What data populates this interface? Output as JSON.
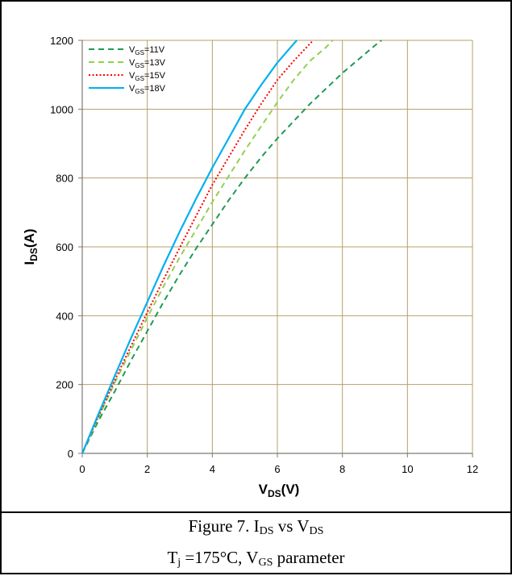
{
  "chart_data": {
    "type": "line",
    "xlabel_main": "V",
    "xlabel_sub": "DS",
    "xlabel_unit": "(V)",
    "ylabel_main": "I",
    "ylabel_sub": "DS",
    "ylabel_unit": "(A)",
    "xlim": [
      0,
      12
    ],
    "ylim": [
      0,
      1200
    ],
    "x_ticks": [
      0,
      2,
      4,
      6,
      8,
      10,
      12
    ],
    "y_ticks": [
      0,
      200,
      400,
      600,
      800,
      1000,
      1200
    ],
    "grid": true,
    "legend_position": "top-left",
    "series": [
      {
        "name_main": "V",
        "name_sub": "GS",
        "name_rest": "=11V",
        "color": "#1f9a54",
        "dash": "dashed",
        "x": [
          0,
          0.5,
          1,
          1.5,
          2,
          2.5,
          3,
          3.5,
          4,
          4.5,
          5,
          5.5,
          6,
          6.5,
          7,
          7.5,
          8,
          8.5,
          9,
          9.2
        ],
        "y": [
          0,
          95,
          180,
          270,
          355,
          440,
          520,
          595,
          665,
          735,
          800,
          860,
          915,
          965,
          1015,
          1060,
          1105,
          1145,
          1185,
          1200
        ]
      },
      {
        "name_main": "V",
        "name_sub": "GS",
        "name_rest": "=13V",
        "color": "#92d050",
        "dash": "dashed",
        "x": [
          0,
          0.5,
          1,
          1.5,
          2,
          2.5,
          3,
          3.5,
          4,
          4.5,
          5,
          5.5,
          6,
          6.5,
          7,
          7.5,
          7.7
        ],
        "y": [
          0,
          105,
          205,
          300,
          395,
          485,
          570,
          650,
          730,
          805,
          880,
          950,
          1020,
          1085,
          1140,
          1180,
          1200
        ]
      },
      {
        "name_main": "V",
        "name_sub": "GS",
        "name_rest": "=15V",
        "color": "#ff0000",
        "dash": "dotted",
        "x": [
          0,
          0.5,
          1,
          1.5,
          2,
          2.5,
          3,
          3.5,
          4,
          4.5,
          5,
          5.5,
          6,
          6.5,
          7,
          7.1
        ],
        "y": [
          0,
          108,
          212,
          312,
          410,
          505,
          598,
          690,
          780,
          860,
          940,
          1015,
          1085,
          1140,
          1190,
          1200
        ]
      },
      {
        "name_main": "V",
        "name_sub": "GS",
        "name_rest": "=18V",
        "color": "#00b0f0",
        "dash": "solid",
        "x": [
          0,
          0.5,
          1,
          1.5,
          2,
          2.5,
          3,
          3.5,
          4,
          4.5,
          5,
          5.5,
          6,
          6.5,
          6.6
        ],
        "y": [
          0,
          115,
          225,
          335,
          440,
          545,
          645,
          740,
          830,
          915,
          1000,
          1070,
          1135,
          1190,
          1200
        ]
      }
    ]
  },
  "caption": {
    "line1_pre": "Figure 7. I",
    "line1_sub1": "DS",
    "line1_mid": " vs V",
    "line1_sub2": "DS",
    "line2_pre": "T",
    "line2_sub1": "j",
    "line2_mid": " =175°C, V",
    "line2_sub2": "GS",
    "line2_post": " parameter"
  }
}
